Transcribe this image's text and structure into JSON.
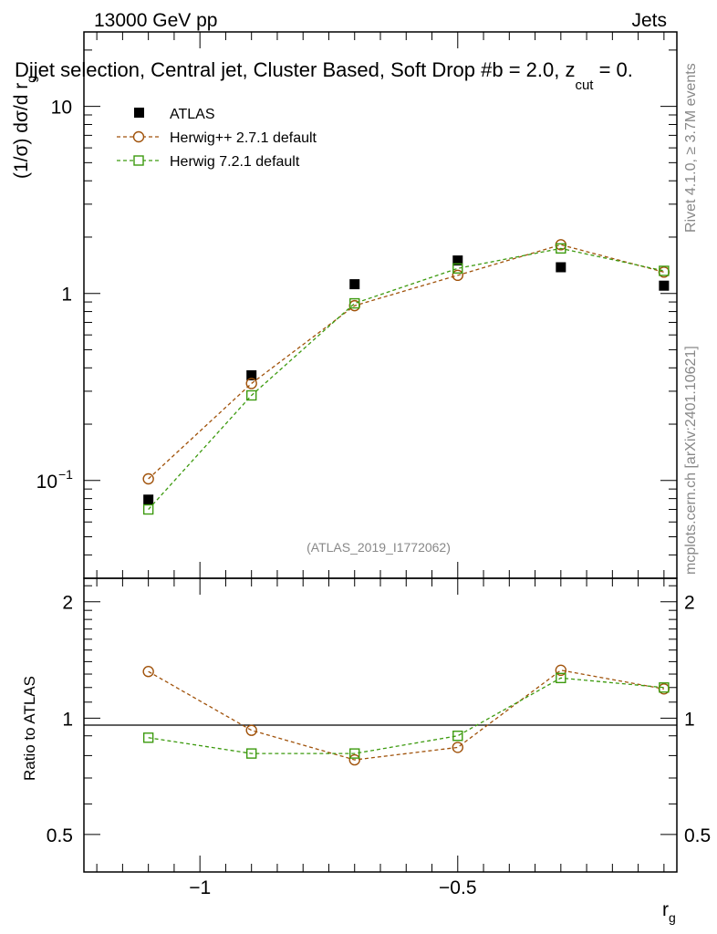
{
  "chart_data": {
    "type": "scatter",
    "header_left": "13000 GeV pp",
    "header_right": "Jets",
    "title": "Dijet selection, Central jet, Cluster Based, Soft Drop #b = 2.0, z",
    "title_sub": "cut",
    "title_end": " = 0.",
    "ylabel_main": "(1/σ) dσ/d r",
    "ylabel_main_sub": "g",
    "ylabel_ratio": "Ratio to ATLAS",
    "xlabel": "r",
    "xlabel_sub": "g",
    "watermark": "(ATLAS_2019_I1772062)",
    "side_text_top": "Rivet 4.1.0, ≥ 3.7M events",
    "side_text_bottom": "mcplots.cern.ch [arXiv:2401.10621]",
    "xlim": [
      -1.225,
      -0.075
    ],
    "main_ylim": [
      0.03,
      25
    ],
    "ratio_ylim": [
      0.4,
      2.3
    ],
    "x_ticks": [
      -1,
      -0.5
    ],
    "x_tick_labels": [
      "−1",
      "−0.5"
    ],
    "main_y_ticks": [
      0.1,
      1,
      10
    ],
    "main_y_tick_labels": [
      "10",
      "1",
      "10"
    ],
    "ratio_y_ticks": [
      0.5,
      1,
      2
    ],
    "ratio_y_tick_labels": [
      "0.5",
      "1",
      "2"
    ],
    "x": [
      -1.1,
      -0.9,
      -0.7,
      -0.5,
      -0.3,
      -0.1
    ],
    "series": [
      {
        "name": "ATLAS",
        "color": "#000000",
        "marker": "filled-square",
        "values": [
          0.079,
          0.365,
          1.12,
          1.5,
          1.38,
          1.1
        ]
      },
      {
        "name": "Herwig++ 2.7.1 default",
        "color": "#a0520a",
        "marker": "open-circle",
        "values": [
          0.102,
          0.33,
          0.86,
          1.25,
          1.82,
          1.3
        ],
        "ratio": [
          1.32,
          0.93,
          0.78,
          0.84,
          1.33,
          1.19
        ]
      },
      {
        "name": "Herwig 7.2.1 default",
        "color": "#3c9a0e",
        "marker": "open-square",
        "values": [
          0.07,
          0.285,
          0.885,
          1.36,
          1.74,
          1.32
        ],
        "ratio": [
          0.89,
          0.81,
          0.81,
          0.9,
          1.27,
          1.2
        ]
      }
    ]
  }
}
